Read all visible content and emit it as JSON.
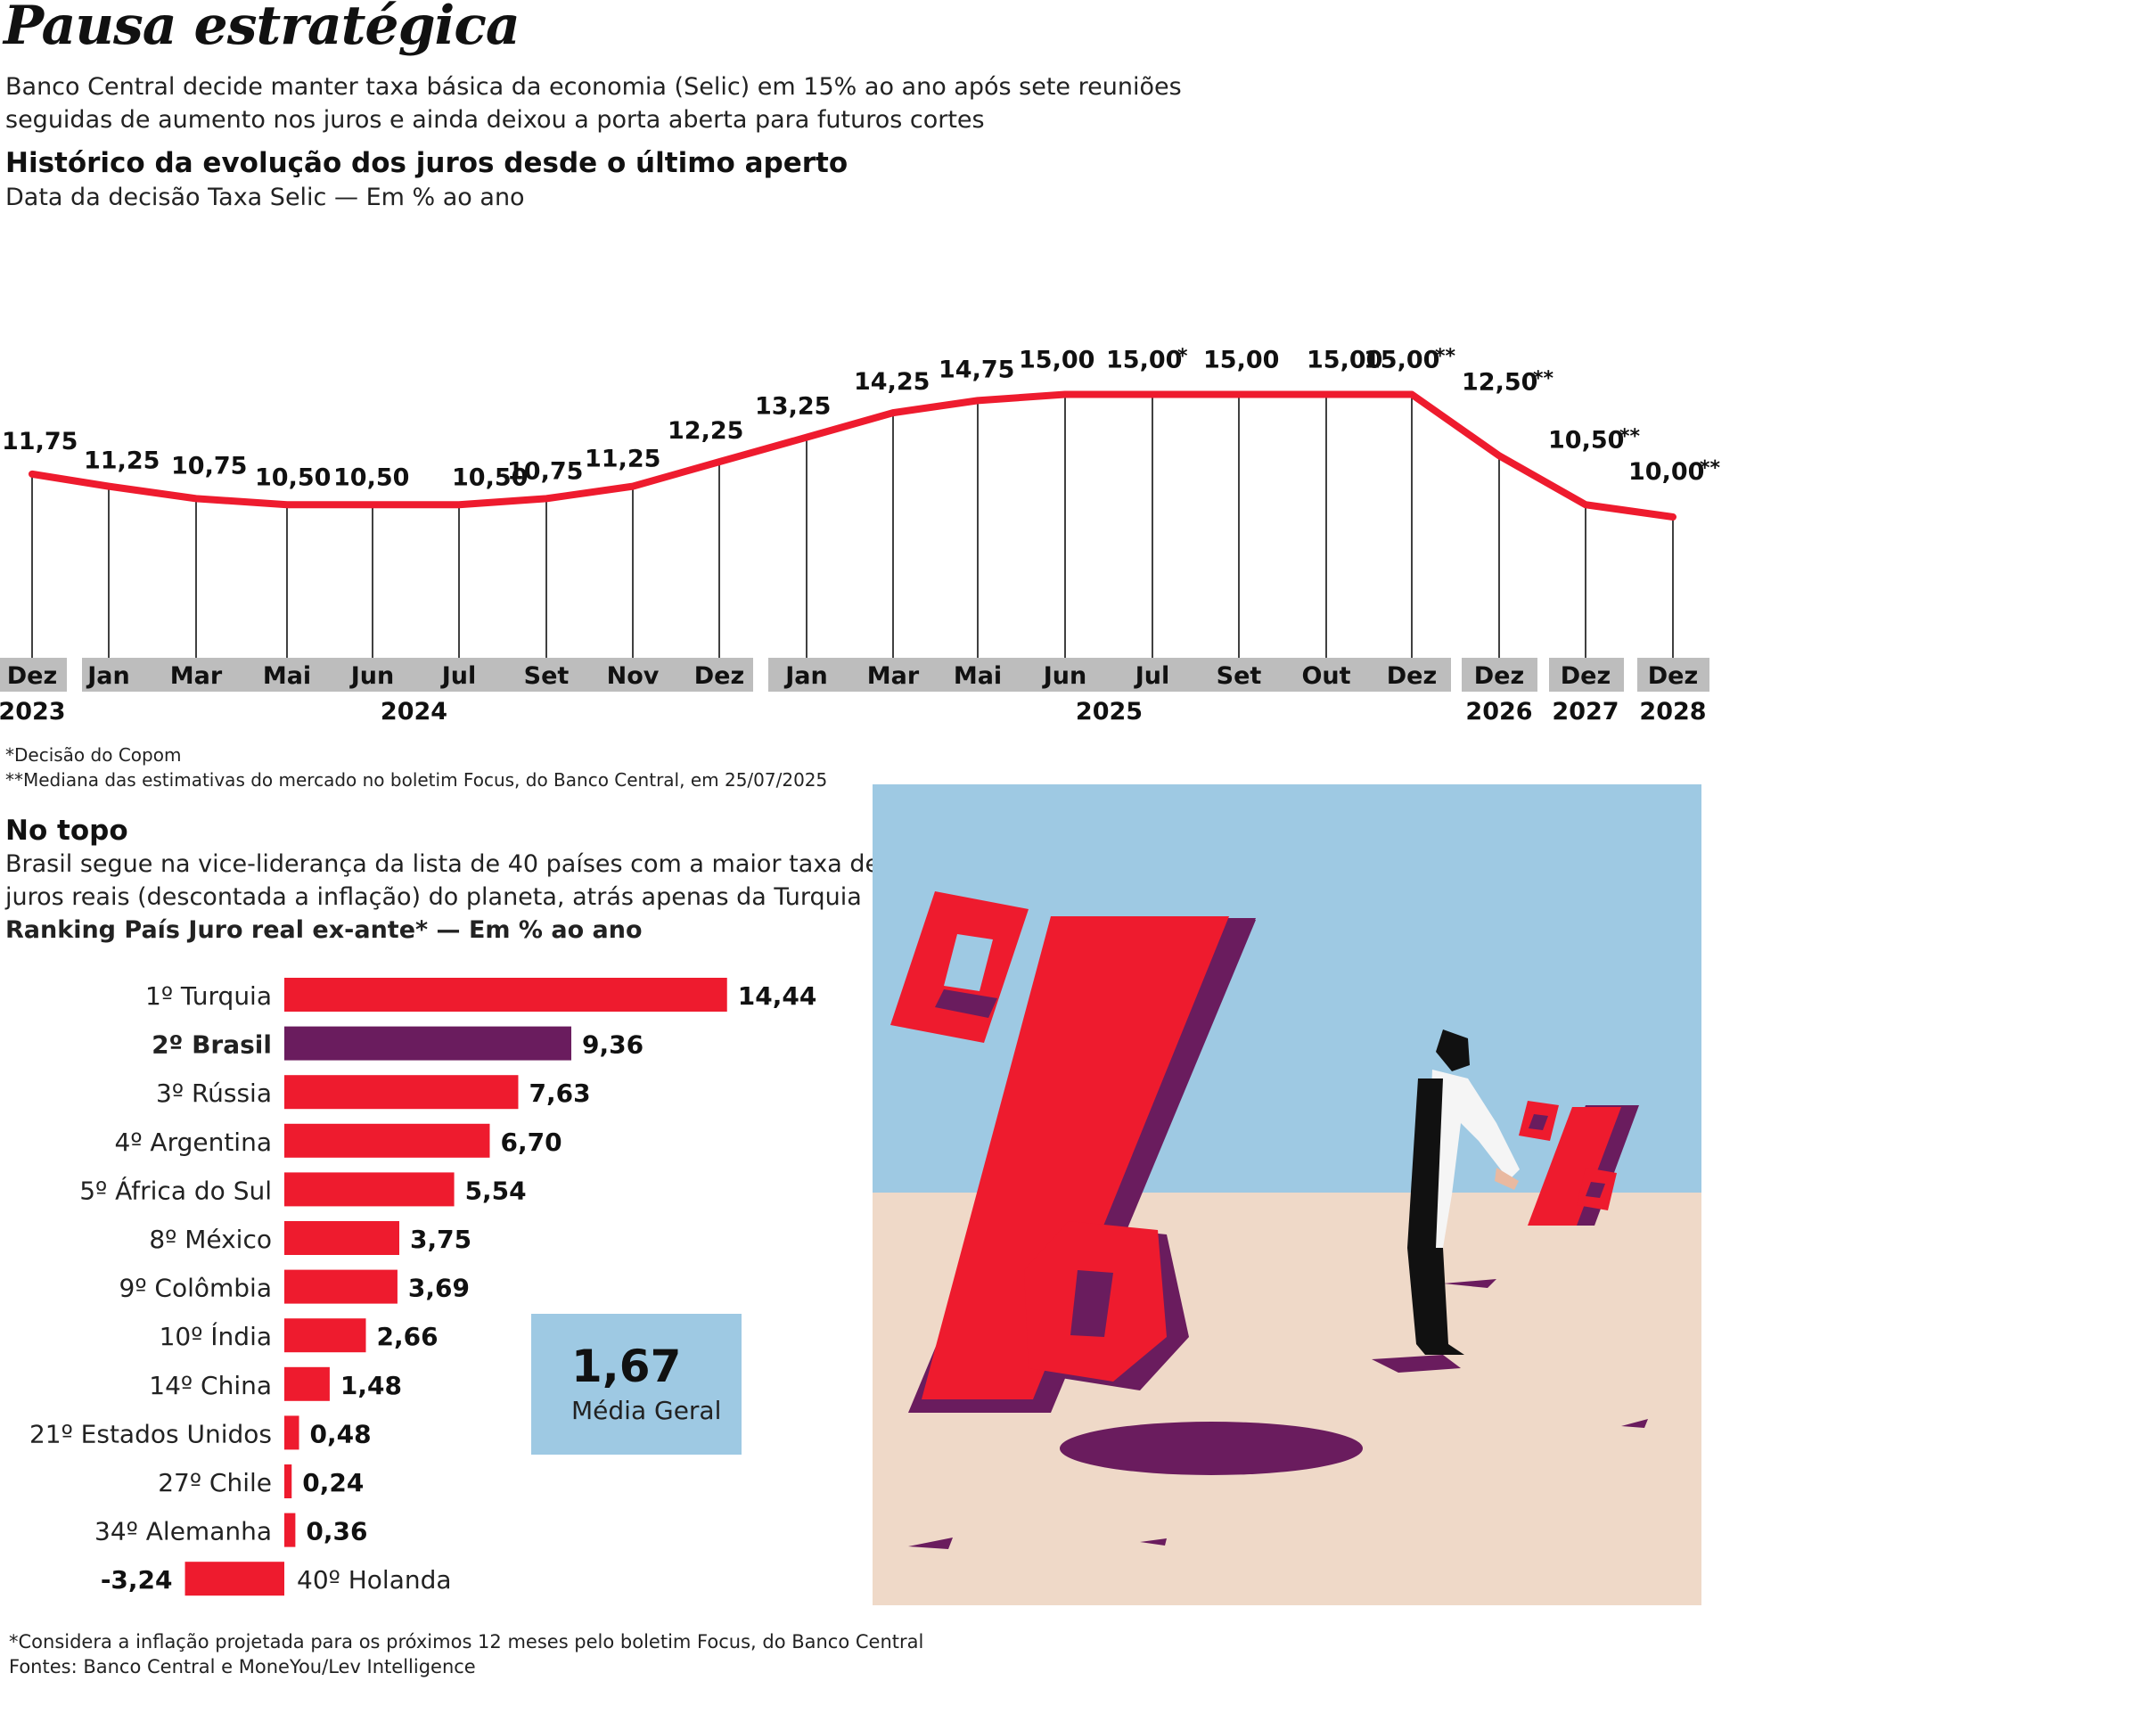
{
  "headline": "Pausa estratégica",
  "intro_line1": "Banco Central decide manter taxa básica da economia (Selic) em 15% ao ano após sete reuniões",
  "intro_line2": "seguidas de aumento nos juros e ainda deixou a porta aberta para futuros cortes",
  "selic_section": {
    "title": "Histórico da evolução dos juros desde o último aperto",
    "subtitle": "Data da decisão Taxa Selic — Em % ao ano",
    "note1": "*Decisão do Copom",
    "note2": "**Mediana das estimativas do mercado no boletim Focus, do Banco Central, em 25/07/2025"
  },
  "ranking_section": {
    "title": "No topo",
    "desc_line1": "Brasil segue na vice-liderança da lista de 40 países com a maior taxa de",
    "desc_line2": "juros reais (descontada a inflação) do planeta, atrás apenas da Turquia",
    "subtitle": "Ranking País Juro real ex-ante* — Em % ao ano",
    "average_value": "1,67",
    "average_label": "Média Geral"
  },
  "footer_line1": "*Considera a inflação projetada para os próximos 12 meses pelo boletim Focus, do Banco Central",
  "footer_line2": "Fontes: Banco Central e MoneYou/Lev Intelligence",
  "colors": {
    "accent_red": "#ee1b2e",
    "brazil_purple": "#6a1c5e",
    "axis_gray": "#bdbdbd",
    "sky_blue": "#9ec9e3",
    "sand": "#efd9c8"
  },
  "illustration_icons": [
    "large-percent-sign-icon",
    "businessman-pushing-icon",
    "small-percent-sign-icon"
  ],
  "chart_data": [
    {
      "type": "line",
      "x": [
        "Dez 2023",
        "Jan 2024",
        "Mar 2024",
        "Mai 2024",
        "Jun 2024",
        "Jul 2024",
        "Set 2024",
        "Nov 2024",
        "Dez 2024",
        "Jan 2025",
        "Mar 2025",
        "Mai 2025",
        "Jun 2025",
        "Jul 2025",
        "Set 2025",
        "Out 2025",
        "Dez 2025",
        "Dez 2026",
        "Dez 2027",
        "Dez 2028"
      ],
      "values": [
        11.75,
        11.25,
        10.75,
        10.5,
        10.5,
        10.5,
        10.75,
        11.25,
        12.25,
        13.25,
        14.25,
        14.75,
        15.0,
        15.0,
        15.0,
        15.0,
        15.0,
        12.5,
        10.5,
        10.0
      ],
      "value_labels": [
        "11,75",
        "11,25",
        "10,75",
        "10,50",
        "10,50",
        "10,50",
        "10,75",
        "11,25",
        "12,25",
        "13,25",
        "14,25",
        "14,75",
        "15,00",
        "15,00",
        "15,00",
        "15,00",
        "15,00",
        "12,50",
        "10,50",
        "10,00"
      ],
      "label_marks": [
        "",
        "",
        "",
        "",
        "",
        "",
        "",
        "",
        "",
        "",
        "",
        "",
        "",
        "*",
        "",
        "",
        "**",
        "**",
        "**",
        "**"
      ],
      "months": [
        "Dez",
        "Jan",
        "Mar",
        "Mai",
        "Jun",
        "Jul",
        "Set",
        "Nov",
        "Dez",
        "Jan",
        "Mar",
        "Mai",
        "Jun",
        "Jul",
        "Set",
        "Out",
        "Dez",
        "Dez",
        "Dez",
        "Dez"
      ],
      "year_groups": [
        {
          "year": "2023",
          "first": 0,
          "last": 0
        },
        {
          "year": "2024",
          "first": 1,
          "last": 8
        },
        {
          "year": "2025",
          "first": 9,
          "last": 16
        },
        {
          "year": "2026",
          "first": 17,
          "last": 17
        },
        {
          "year": "2027",
          "first": 18,
          "last": 18
        },
        {
          "year": "2028",
          "first": 19,
          "last": 19
        }
      ],
      "ylim": [
        10.0,
        15.0
      ]
    },
    {
      "type": "bar",
      "orientation": "horizontal",
      "categories": [
        "1º Turquia",
        "2º Brasil",
        "3º Rússia",
        "4º Argentina",
        "5º África do Sul",
        "8º México",
        "9º Colômbia",
        "10º Índia",
        "14º China",
        "21º Estados Unidos",
        "27º Chile",
        "34º Alemanha",
        "40º Holanda"
      ],
      "values": [
        14.44,
        9.36,
        7.63,
        6.7,
        5.54,
        3.75,
        3.69,
        2.66,
        1.48,
        0.48,
        0.24,
        0.36,
        -3.24
      ],
      "value_labels": [
        "14,44",
        "9,36",
        "7,63",
        "6,70",
        "5,54",
        "3,75",
        "3,69",
        "2,66",
        "1,48",
        "0,48",
        "0,24",
        "0,36",
        "-3,24"
      ],
      "highlight_index": 1
    }
  ]
}
